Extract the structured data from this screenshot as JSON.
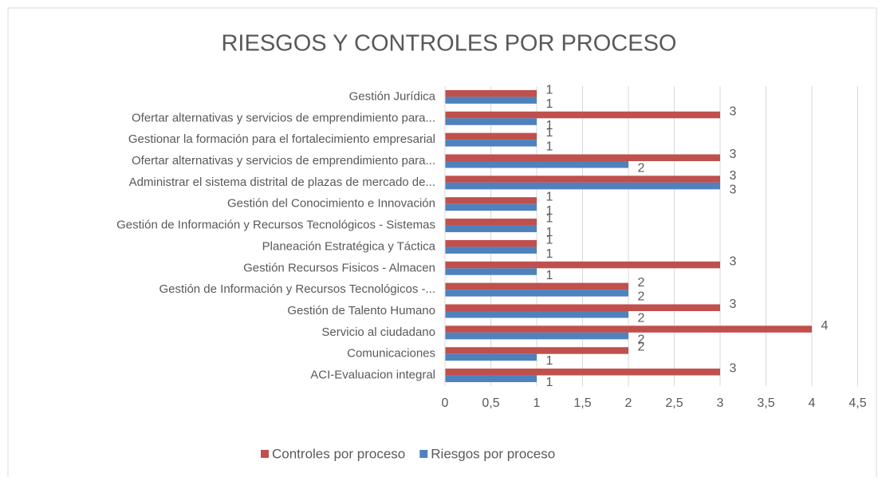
{
  "chart_data": {
    "type": "hbar",
    "title": "RIESGOS Y CONTROLES POR PROCESO",
    "categories": [
      "Gestión Jurídica",
      "Ofertar alternativas y servicios de emprendimiento para...",
      "Gestionar la formación para el fortalecimiento empresarial",
      "Ofertar alternativas y servicios de emprendimiento para...",
      "Administrar el sistema distrital de plazas de mercado de...",
      "Gestión del Conocimiento e Innovación",
      "Gestión de Información y Recursos Tecnológicos - Sistemas",
      "Planeación Estratégica y Táctica",
      "Gestión Recursos Fisicos - Almacen",
      "Gestión de Información y Recursos Tecnológicos -...",
      "Gestión de Talento Humano",
      "Servicio al ciudadano",
      "Comunicaciones",
      "ACI-Evaluacion integral"
    ],
    "series": [
      {
        "name": "Controles por proceso",
        "color": "#c0504d",
        "values": [
          1,
          3,
          1,
          3,
          3,
          1,
          1,
          1,
          3,
          2,
          3,
          4,
          2,
          3
        ]
      },
      {
        "name": "Riesgos por proceso",
        "color": "#4f81bd",
        "values": [
          1,
          1,
          1,
          2,
          3,
          1,
          1,
          1,
          1,
          2,
          2,
          2,
          1,
          1
        ]
      }
    ],
    "xlim": [
      0,
      4.5
    ],
    "xticks": [
      0,
      {
        "value": 0.5,
        "label": "0,5"
      },
      1,
      {
        "value": 1.5,
        "label": "1,5"
      },
      2,
      {
        "value": 2.5,
        "label": "2,5"
      },
      3,
      {
        "value": 3.5,
        "label": "3,5"
      },
      4,
      {
        "value": 4.5,
        "label": "4,5"
      }
    ],
    "grid": true,
    "legend": "bottom"
  }
}
